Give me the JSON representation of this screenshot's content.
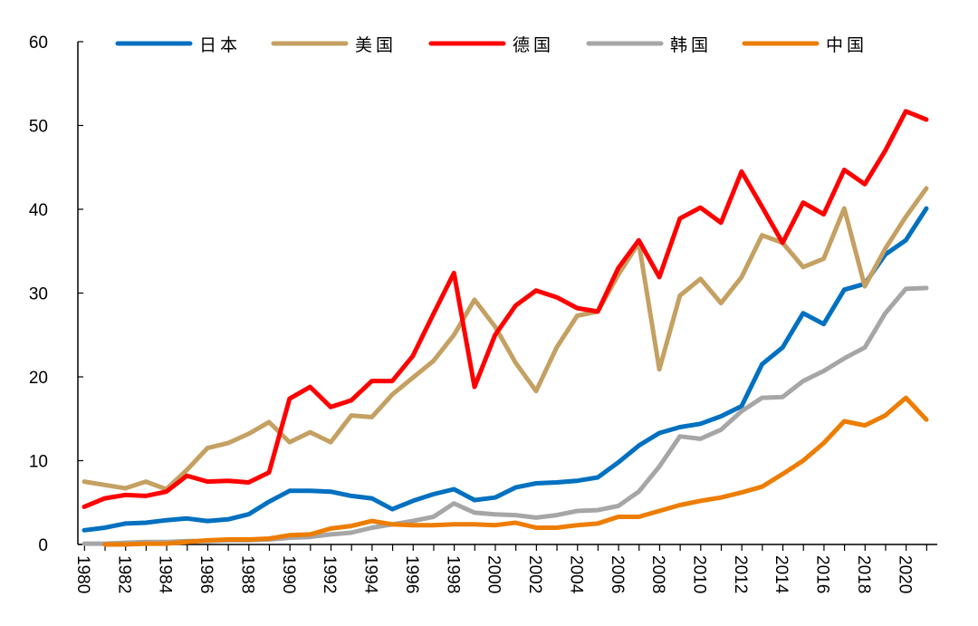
{
  "chart_data": {
    "type": "line",
    "title": "",
    "xlabel": "",
    "ylabel": "",
    "ylim": [
      0,
      60
    ],
    "yticks": [
      0,
      10,
      20,
      30,
      40,
      50,
      60
    ],
    "xlim": [
      1980,
      2021
    ],
    "xtick_labels": [
      "1980",
      "1982",
      "1984",
      "1986",
      "1988",
      "1990",
      "1992",
      "1994",
      "1996",
      "1998",
      "2000",
      "2002",
      "2004",
      "2006",
      "2008",
      "2010",
      "2012",
      "2014",
      "2016",
      "2018",
      "2020"
    ],
    "grid": false,
    "legend_position": "top",
    "x": [
      1980,
      1981,
      1982,
      1983,
      1984,
      1985,
      1986,
      1987,
      1988,
      1989,
      1990,
      1991,
      1992,
      1993,
      1994,
      1995,
      1996,
      1997,
      1998,
      1999,
      2000,
      2001,
      2002,
      2003,
      2004,
      2005,
      2006,
      2007,
      2008,
      2009,
      2010,
      2011,
      2012,
      2013,
      2014,
      2015,
      2016,
      2017,
      2018,
      2019,
      2020,
      2021
    ],
    "series": [
      {
        "name": "日本",
        "color": "#0070C0",
        "values": [
          1.7,
          2,
          2.5,
          2.6,
          2.9,
          3.1,
          2.8,
          3,
          3.6,
          5.1,
          6.4,
          6.4,
          6.3,
          5.8,
          5.5,
          4.2,
          5.2,
          6,
          6.6,
          5.3,
          5.6,
          6.8,
          7.3,
          7.4,
          7.6,
          8,
          9.8,
          11.8,
          13.3,
          14,
          14.4,
          15.3,
          16.5,
          21.5,
          23.5,
          27.6,
          26.3,
          30.4,
          31.1,
          34.6,
          36.3,
          40.1
        ]
      },
      {
        "name": "美国",
        "color": "#C4A062",
        "values": [
          7.5,
          7.1,
          6.7,
          7.5,
          6.6,
          8.9,
          11.5,
          12.1,
          13.2,
          14.6,
          12.2,
          13.4,
          12.2,
          15.4,
          15.2,
          17.9,
          19.9,
          21.9,
          25,
          29.2,
          26,
          21.7,
          18.3,
          23.5,
          27.3,
          27.8,
          32.2,
          36,
          20.9,
          29.7,
          31.7,
          28.8,
          31.9,
          36.9,
          36,
          33.1,
          34.1,
          40.1,
          30.8,
          35.3,
          39.1,
          42.5
        ]
      },
      {
        "name": "德国",
        "color": "#FF0000",
        "values": [
          4.5,
          5.5,
          5.9,
          5.8,
          6.3,
          8.2,
          7.5,
          7.6,
          7.4,
          8.6,
          17.4,
          18.8,
          16.4,
          17.2,
          19.5,
          19.5,
          22.5,
          27.5,
          32.4,
          18.8,
          25,
          28.5,
          30.3,
          29.5,
          28.2,
          27.8,
          33,
          36.3,
          31.9,
          38.9,
          40.2,
          38.4,
          44.5,
          40.3,
          36,
          40.8,
          39.4,
          44.7,
          43,
          47,
          51.7,
          50.7
        ]
      },
      {
        "name": "韩国",
        "color": "#A6A6A6",
        "values": [
          0.1,
          0.1,
          0.2,
          0.3,
          0.3,
          0.4,
          0.4,
          0.5,
          0.5,
          0.6,
          0.8,
          0.9,
          1.2,
          1.4,
          2,
          2.4,
          2.8,
          3.3,
          4.9,
          3.8,
          3.6,
          3.5,
          3.2,
          3.5,
          4,
          4.1,
          4.6,
          6.3,
          9.3,
          12.9,
          12.6,
          13.7,
          15.9,
          17.5,
          17.6,
          19.5,
          20.7,
          22.2,
          23.5,
          27.6,
          30.5,
          30.6
        ]
      },
      {
        "name": "中国",
        "color": "#ED7D00",
        "values": [
          null,
          0,
          0,
          0.1,
          0.1,
          0.3,
          0.5,
          0.6,
          0.6,
          0.7,
          1.1,
          1.2,
          1.9,
          2.2,
          2.8,
          2.4,
          2.3,
          2.3,
          2.4,
          2.4,
          2.3,
          2.6,
          2.0,
          2.0,
          2.3,
          2.5,
          3.3,
          3.3,
          4.0,
          4.7,
          5.2,
          5.6,
          6.2,
          6.9,
          8.4,
          10.0,
          12.1,
          14.7,
          14.2,
          15.4,
          17.5,
          14.9
        ]
      }
    ]
  }
}
